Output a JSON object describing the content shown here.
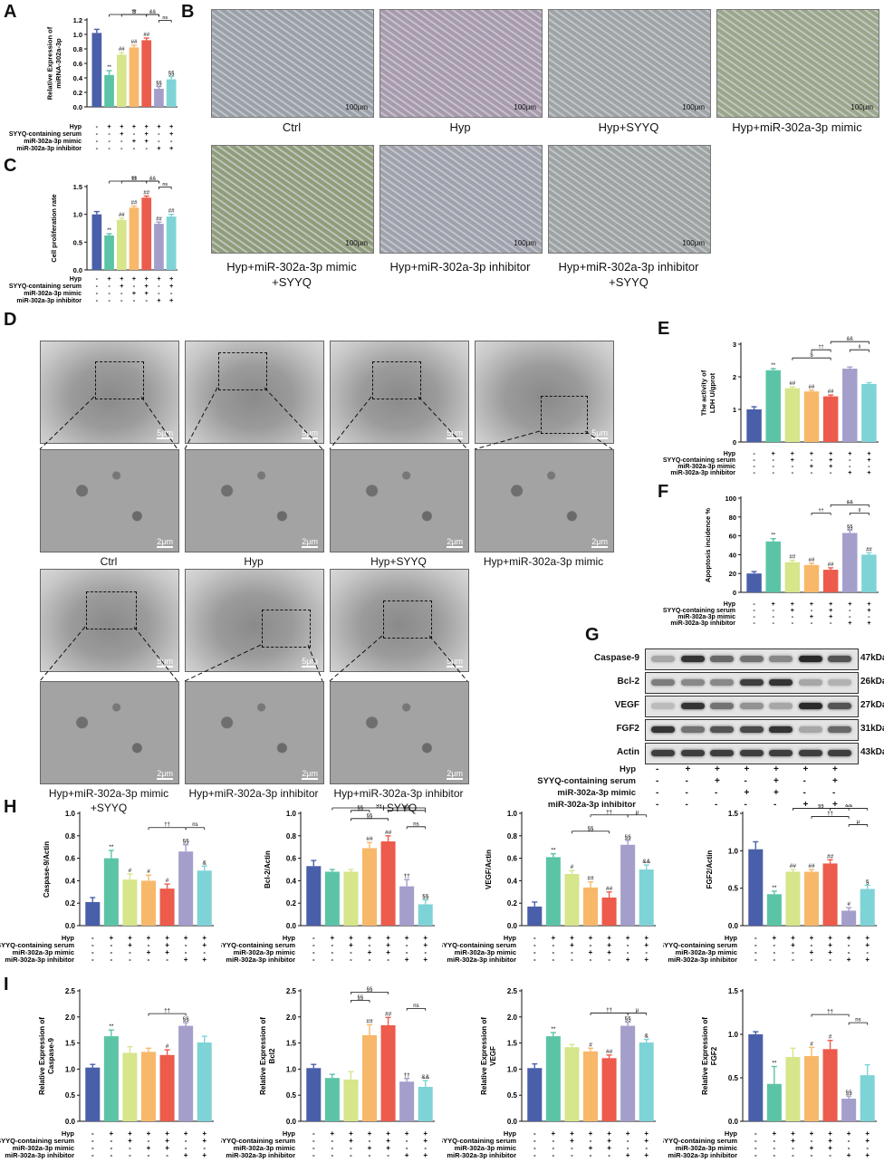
{
  "panel_labels": {
    "A": "A",
    "B": "B",
    "C": "C",
    "D": "D",
    "E": "E",
    "F": "F",
    "G": "G",
    "H": "H",
    "I": "I"
  },
  "row_labels": {
    "hyp": "Hyp",
    "syyq": "SYYQ-containing serum",
    "mimic": "miR-302a-3p mimic",
    "inhibitor": "miR-302a-3p inhibitor"
  },
  "signs": {
    "hyp": [
      "-",
      "+",
      "+",
      "+",
      "+",
      "+",
      "+"
    ],
    "syyq": [
      "-",
      "-",
      "+",
      "-",
      "+",
      "-",
      "+"
    ],
    "mimic": [
      "-",
      "-",
      "-",
      "+",
      "+",
      "-",
      "-"
    ],
    "inhibitor": [
      "-",
      "-",
      "-",
      "-",
      "-",
      "+",
      "+"
    ]
  },
  "colors": [
    "#4a5faa",
    "#5cc4a6",
    "#d7e58b",
    "#f8b86a",
    "#ec5b4b",
    "#a49ecb",
    "#7ed3d6"
  ],
  "panelB": {
    "scale": "100μm",
    "captions": [
      "Ctrl",
      "Hyp",
      "Hyp+SYYQ",
      "Hyp+miR-302a-3p mimic",
      "Hyp+miR-302a-3p mimic\n+SYYQ",
      "Hyp+miR-302a-3p inhibitor",
      "Hyp+miR-302a-3p inhibitor\n+SYYQ"
    ]
  },
  "panelD": {
    "scale_top": "5μm",
    "scale_bottom": "2μm",
    "captions": [
      "Ctrl",
      "Hyp",
      "Hyp+SYYQ",
      "Hyp+miR-302a-3p mimic",
      "Hyp+miR-302a-3p mimic\n+SYYQ",
      "Hyp+miR-302a-3p inhibitor",
      "Hyp+miR-302a-3p inhibitor\n+SYYQ"
    ]
  },
  "panelG": {
    "proteins": [
      "Caspase-9",
      "Bcl-2",
      "VEGF",
      "FGF2",
      "Actin"
    ],
    "sizes": [
      "47kDa",
      "26kDa",
      "27kDa",
      "31kDa",
      "43kDa"
    ],
    "intensity": [
      [
        0.3,
        0.85,
        0.6,
        0.55,
        0.45,
        0.9,
        0.7
      ],
      [
        0.5,
        0.45,
        0.45,
        0.8,
        0.85,
        0.3,
        0.25
      ],
      [
        0.2,
        0.85,
        0.55,
        0.4,
        0.3,
        0.9,
        0.7
      ],
      [
        0.85,
        0.55,
        0.7,
        0.75,
        0.85,
        0.3,
        0.6
      ],
      [
        0.8,
        0.8,
        0.8,
        0.8,
        0.8,
        0.8,
        0.8
      ]
    ]
  },
  "chart_data": [
    {
      "id": "A",
      "type": "bar",
      "ylabel": "Relative Expression of\nmiRNA-302a-3p",
      "ylim": [
        0,
        1.2
      ],
      "yticks": [
        0.0,
        0.2,
        0.4,
        0.6,
        0.8,
        1.0,
        1.2
      ],
      "values": [
        1.02,
        0.44,
        0.72,
        0.82,
        0.92,
        0.25,
        0.38
      ],
      "errors": [
        0.05,
        0.06,
        0.03,
        0.03,
        0.03,
        0.03,
        0.04
      ],
      "marks": [
        "",
        "**",
        "##",
        "##",
        "##",
        "§§",
        "§§"
      ],
      "brackets": [
        {
          "a": 1,
          "b": 5,
          "lvl": 2,
          "t": "††"
        },
        {
          "a": 2,
          "b": 4,
          "lvl": 1,
          "t": "$"
        },
        {
          "a": 4,
          "b": 5,
          "lvl": 1,
          "t": "&&"
        },
        {
          "a": 5,
          "b": 6,
          "lvl": 0,
          "t": "ns"
        }
      ]
    },
    {
      "id": "C",
      "type": "bar",
      "ylabel": "Cell proliferation rate",
      "ylim": [
        0,
        1.5
      ],
      "yticks": [
        0.0,
        0.5,
        1.0,
        1.5
      ],
      "values": [
        1.0,
        0.62,
        0.9,
        1.12,
        1.3,
        0.83,
        0.96
      ],
      "errors": [
        0.05,
        0.03,
        0.03,
        0.03,
        0.03,
        0.03,
        0.04
      ],
      "marks": [
        "",
        "**",
        "##",
        "##",
        "##",
        "##",
        "##"
      ],
      "brackets": [
        {
          "a": 1,
          "b": 5,
          "lvl": 2,
          "t": "††"
        },
        {
          "a": 2,
          "b": 4,
          "lvl": 1,
          "t": "§§"
        },
        {
          "a": 4,
          "b": 5,
          "lvl": 1,
          "t": "&&"
        },
        {
          "a": 5,
          "b": 6,
          "lvl": 0,
          "t": "ns"
        }
      ]
    },
    {
      "id": "E",
      "type": "bar",
      "ylabel": "The activity of\nLDH U/gprot",
      "ylim": [
        0,
        3
      ],
      "yticks": [
        0,
        1,
        2,
        3
      ],
      "values": [
        1.0,
        2.2,
        1.65,
        1.55,
        1.4,
        2.25,
        1.78
      ],
      "errors": [
        0.08,
        0.05,
        0.04,
        0.04,
        0.04,
        0.05,
        0.04
      ],
      "marks": [
        "",
        "**",
        "##",
        "##",
        "##",
        "",
        ""
      ],
      "brackets": [
        {
          "a": 4,
          "b": 6,
          "lvl": 2,
          "t": "&&"
        },
        {
          "a": 3,
          "b": 4,
          "lvl": 1,
          "t": "††"
        },
        {
          "a": 5,
          "b": 6,
          "lvl": 1,
          "t": "‖"
        },
        {
          "a": 2,
          "b": 4,
          "lvl": 0,
          "t": "$"
        }
      ]
    },
    {
      "id": "F",
      "type": "bar",
      "ylabel": "Apoptosis incidence %",
      "ylim": [
        0,
        100
      ],
      "yticks": [
        0,
        20,
        40,
        60,
        80,
        100
      ],
      "values": [
        20,
        54,
        32,
        29,
        24,
        63,
        40
      ],
      "errors": [
        2,
        3,
        2,
        2,
        2,
        3,
        2
      ],
      "marks": [
        "",
        "**",
        "##",
        "##",
        "##",
        "§§",
        "##"
      ],
      "brackets": [
        {
          "a": 4,
          "b": 6,
          "lvl": 2,
          "t": "&&"
        },
        {
          "a": 3,
          "b": 4,
          "lvl": 1,
          "t": "††"
        },
        {
          "a": 5,
          "b": 6,
          "lvl": 1,
          "t": "‖"
        }
      ]
    },
    {
      "id": "H1",
      "type": "bar",
      "ylabel": "Caspase-9/Actin",
      "ylim": [
        0,
        1.0
      ],
      "yticks": [
        0.0,
        0.2,
        0.4,
        0.6,
        0.8,
        1.0
      ],
      "values": [
        0.21,
        0.6,
        0.41,
        0.4,
        0.33,
        0.66,
        0.49
      ],
      "errors": [
        0.04,
        0.07,
        0.05,
        0.05,
        0.04,
        0.06,
        0.04
      ],
      "marks": [
        "",
        "**",
        "#",
        "#",
        "#",
        "§§",
        "&"
      ],
      "brackets": [
        {
          "a": 3,
          "b": 5,
          "lvl": 1,
          "t": "††"
        },
        {
          "a": 5,
          "b": 6,
          "lvl": 1,
          "t": "ns"
        }
      ]
    },
    {
      "id": "H2",
      "type": "bar",
      "ylabel": "Bcl-2/Actin",
      "ylim": [
        0,
        1.0
      ],
      "yticks": [
        0.0,
        0.2,
        0.4,
        0.6,
        0.8,
        1.0
      ],
      "values": [
        0.53,
        0.48,
        0.48,
        0.69,
        0.75,
        0.35,
        0.19
      ],
      "errors": [
        0.05,
        0.02,
        0.02,
        0.05,
        0.05,
        0.06,
        0.04
      ],
      "marks": [
        "",
        "",
        "",
        "##",
        "##",
        "††",
        "§§"
      ],
      "brackets": [
        {
          "a": 1,
          "b": 6,
          "lvl": 3,
          "t": "§§"
        },
        {
          "a": 2,
          "b": 3,
          "lvl": 2,
          "t": "§§"
        },
        {
          "a": 4,
          "b": 6,
          "lvl": 2,
          "t": "&&"
        },
        {
          "a": 2,
          "b": 4,
          "lvl": 1,
          "t": "§§"
        },
        {
          "a": 5,
          "b": 6,
          "lvl": 0,
          "t": "ns"
        }
      ]
    },
    {
      "id": "H3",
      "type": "bar",
      "ylabel": "VEGF/Actin",
      "ylim": [
        0,
        1.0
      ],
      "yticks": [
        0.0,
        0.2,
        0.4,
        0.6,
        0.8,
        1.0
      ],
      "values": [
        0.17,
        0.61,
        0.46,
        0.34,
        0.25,
        0.72,
        0.5
      ],
      "errors": [
        0.04,
        0.03,
        0.03,
        0.05,
        0.05,
        0.04,
        0.04
      ],
      "marks": [
        "",
        "**",
        "#",
        "##",
        "##",
        "§§",
        "&&"
      ],
      "brackets": [
        {
          "a": 3,
          "b": 5,
          "lvl": 2,
          "t": "††"
        },
        {
          "a": 5,
          "b": 6,
          "lvl": 2,
          "t": "μ"
        },
        {
          "a": 2,
          "b": 4,
          "lvl": 0,
          "t": "§§"
        }
      ]
    },
    {
      "id": "H4",
      "type": "bar",
      "ylabel": "FGF2/Actin",
      "ylim": [
        0,
        1.5
      ],
      "yticks": [
        0.0,
        0.5,
        1.0,
        1.5
      ],
      "values": [
        1.02,
        0.42,
        0.72,
        0.72,
        0.83,
        0.2,
        0.49
      ],
      "errors": [
        0.1,
        0.04,
        0.03,
        0.03,
        0.05,
        0.04,
        0.05
      ],
      "marks": [
        "",
        "**",
        "##",
        "##",
        "##",
        "#",
        "§"
      ],
      "brackets": [
        {
          "a": 2,
          "b": 5,
          "lvl": 3,
          "t": "§§"
        },
        {
          "a": 4,
          "b": 6,
          "lvl": 3,
          "t": "&&"
        },
        {
          "a": 3,
          "b": 5,
          "lvl": 2,
          "t": "††"
        },
        {
          "a": 5,
          "b": 6,
          "lvl": 1,
          "t": "μ"
        }
      ]
    },
    {
      "id": "I1",
      "type": "bar",
      "ylabel": "Relative Expression of\nCaspase-9",
      "ylim": [
        0,
        2.5
      ],
      "yticks": [
        0.0,
        0.5,
        1.0,
        1.5,
        2.0,
        2.5
      ],
      "values": [
        1.03,
        1.63,
        1.31,
        1.33,
        1.27,
        1.83,
        1.51
      ],
      "errors": [
        0.06,
        0.12,
        0.12,
        0.07,
        0.1,
        0.06,
        0.12
      ],
      "marks": [
        "",
        "**",
        "",
        "",
        "#",
        "§§",
        ""
      ],
      "brackets": [
        {
          "a": 3,
          "b": 5,
          "lvl": 0,
          "t": "††"
        }
      ]
    },
    {
      "id": "I2",
      "type": "bar",
      "ylabel": "Relative Expression of\nBcl2",
      "ylim": [
        0,
        2.5
      ],
      "yticks": [
        0.0,
        0.5,
        1.0,
        1.5,
        2.0,
        2.5
      ],
      "values": [
        1.02,
        0.83,
        0.8,
        1.65,
        1.84,
        0.76,
        0.66
      ],
      "errors": [
        0.07,
        0.07,
        0.15,
        0.2,
        0.15,
        0.06,
        0.12
      ],
      "marks": [
        "",
        "",
        "",
        "##",
        "##",
        "††",
        "&&"
      ],
      "brackets": [
        {
          "a": 2,
          "b": 4,
          "lvl": 2,
          "t": "§§"
        },
        {
          "a": 2,
          "b": 3,
          "lvl": 1,
          "t": "§§"
        },
        {
          "a": 5,
          "b": 6,
          "lvl": 0,
          "t": "ns"
        }
      ]
    },
    {
      "id": "I3",
      "type": "bar",
      "ylabel": "Relative Expression of\nVEGF",
      "ylim": [
        0,
        2.5
      ],
      "yticks": [
        0.0,
        0.5,
        1.0,
        1.5,
        2.0,
        2.5
      ],
      "values": [
        1.02,
        1.63,
        1.42,
        1.34,
        1.21,
        1.83,
        1.51
      ],
      "errors": [
        0.08,
        0.07,
        0.05,
        0.06,
        0.06,
        0.07,
        0.06
      ],
      "marks": [
        "",
        "**",
        "",
        "#",
        "##",
        "§§",
        "&"
      ],
      "brackets": [
        {
          "a": 3,
          "b": 5,
          "lvl": 0,
          "t": "††"
        },
        {
          "a": 5,
          "b": 6,
          "lvl": 0,
          "t": "μ"
        }
      ]
    },
    {
      "id": "I4",
      "type": "bar",
      "ylabel": "Relative Expression of\nFGF2",
      "ylim": [
        0,
        1.5
      ],
      "yticks": [
        0.0,
        0.5,
        1.0,
        1.5
      ],
      "values": [
        1.0,
        0.43,
        0.74,
        0.75,
        0.83,
        0.26,
        0.53
      ],
      "errors": [
        0.03,
        0.2,
        0.1,
        0.1,
        0.1,
        0.03,
        0.12
      ],
      "marks": [
        "",
        "**",
        "",
        "#",
        "#",
        "§§",
        ""
      ],
      "brackets": [
        {
          "a": 3,
          "b": 5,
          "lvl": 1,
          "t": "††"
        },
        {
          "a": 5,
          "b": 6,
          "lvl": 0,
          "t": "ns"
        }
      ]
    }
  ]
}
